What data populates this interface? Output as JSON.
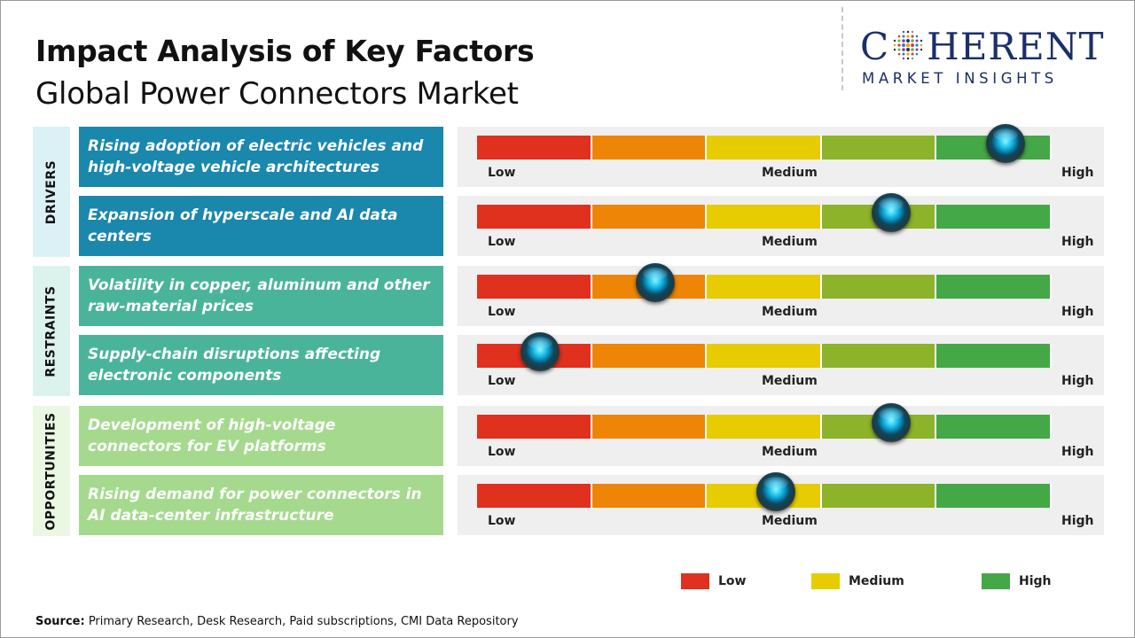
{
  "header": {
    "title": "Impact Analysis of Key Factors",
    "subtitle": "Global Power Connectors Market"
  },
  "logo": {
    "word_before": "C",
    "word_after": "HERENT",
    "tagline": "MARKET INSIGHTS",
    "color": "#1a2f6b"
  },
  "colors": {
    "scale": [
      "#e0301e",
      "#ee8506",
      "#e6cc00",
      "#8cb32a",
      "#43a845"
    ],
    "drivers": "#1a87ad",
    "restraints": "#4ab49a",
    "opportunities": "#a5da8e",
    "drivers_tint": "#dcf1f6",
    "restraints_tint": "#dcf3ed",
    "opportunities_tint": "#eaf7e2"
  },
  "chart_data": {
    "type": "gauge",
    "scale": {
      "min_label": "Low",
      "mid_label": "Medium",
      "max_label": "High",
      "segments": 5
    },
    "categories": [
      {
        "name": "DRIVERS",
        "color_key": "drivers"
      },
      {
        "name": "RESTRAINTS",
        "color_key": "restraints"
      },
      {
        "name": "OPPORTUNITIES",
        "color_key": "opportunities"
      }
    ],
    "factors": [
      {
        "category": "DRIVERS",
        "text": "Rising adoption of electric vehicles and high-voltage vehicle architectures",
        "impact": 0.92
      },
      {
        "category": "DRIVERS",
        "text": "Expansion of hyperscale and AI data centers",
        "impact": 0.72
      },
      {
        "category": "RESTRAINTS",
        "text": "Volatility in copper, aluminum and other raw-material prices",
        "impact": 0.31
      },
      {
        "category": "RESTRAINTS",
        "text": "Supply-chain disruptions affecting electronic components",
        "impact": 0.11
      },
      {
        "category": "OPPORTUNITIES",
        "text": "Development of high-voltage connectors for EV platforms",
        "impact": 0.72
      },
      {
        "category": "OPPORTUNITIES",
        "text": "Rising demand for power connectors in AI data-center infrastructure",
        "impact": 0.52
      }
    ],
    "legend": [
      {
        "label": "Low",
        "color": "#e0301e"
      },
      {
        "label": "Medium",
        "color": "#e6cc00"
      },
      {
        "label": "High",
        "color": "#43a845"
      }
    ]
  },
  "source": {
    "label": "Source:",
    "text": " Primary Research, Desk Research, Paid subscriptions, CMI Data Repository"
  }
}
